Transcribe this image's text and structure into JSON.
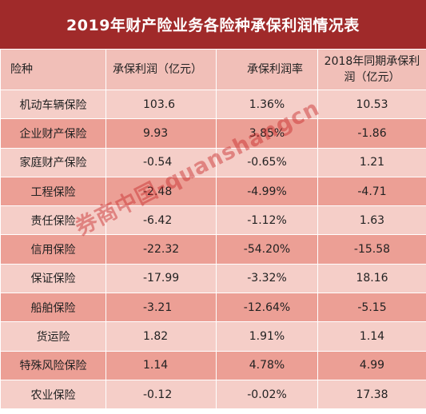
{
  "title": "2019年财产险业务各险种承保利润情况表",
  "headers": {
    "type": "险种",
    "profit": "承保利润（亿元）",
    "rate": "承保利润率",
    "prev_line1": "2018年同期承保利",
    "prev_line2": "润（亿元）"
  },
  "rows": [
    {
      "name": "机动车辆保险",
      "profit": "103.6",
      "rate": "1.36%",
      "prev": "10.53"
    },
    {
      "name": "企业财产保险",
      "profit": "9.93",
      "rate": "3.85%",
      "prev": "-1.86"
    },
    {
      "name": "家庭财产保险",
      "profit": "-0.54",
      "rate": "-0.65%",
      "prev": "1.21"
    },
    {
      "name": "工程保险",
      "profit": "-2.48",
      "rate": "-4.99%",
      "prev": "-4.71"
    },
    {
      "name": "责任保险",
      "profit": "-6.42",
      "rate": "-1.12%",
      "prev": "1.63"
    },
    {
      "name": "信用保险",
      "profit": "-22.32",
      "rate": "-54.20%",
      "prev": "-15.58"
    },
    {
      "name": "保证保险",
      "profit": "-17.99",
      "rate": "-3.32%",
      "prev": "18.16"
    },
    {
      "name": "船舶保险",
      "profit": "-3.21",
      "rate": "-12.64%",
      "prev": "-5.15"
    },
    {
      "name": "货运险",
      "profit": "1.82",
      "rate": "1.91%",
      "prev": "1.14"
    },
    {
      "name": "特殊风险保险",
      "profit": "1.14",
      "rate": "4.78%",
      "prev": "4.99"
    },
    {
      "name": "农业保险",
      "profit": "-0.12",
      "rate": "-0.02%",
      "prev": "17.38"
    }
  ],
  "watermark": "券商中国-quanshangcn",
  "colors": {
    "title_bg": "#a02a2a",
    "header_bg": "#f1bfb8",
    "row_light": "#f5cec8",
    "row_dark": "#ec9f95"
  }
}
